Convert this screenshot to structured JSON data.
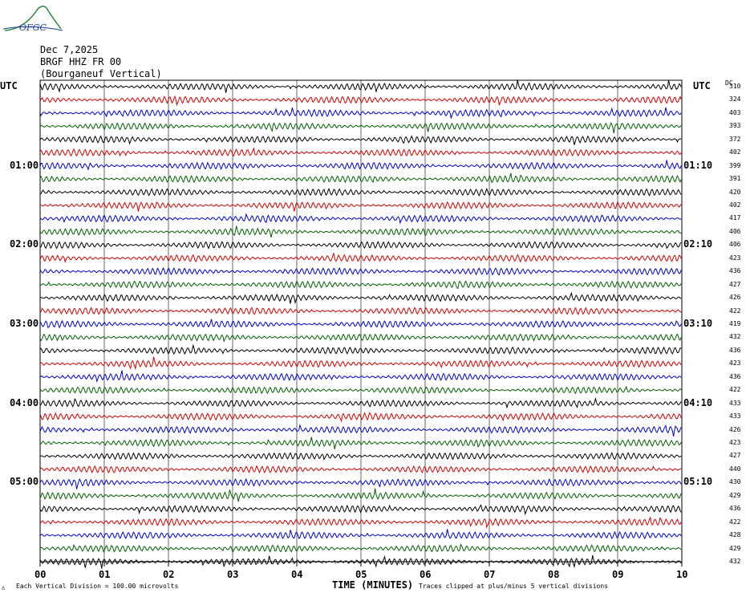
{
  "header": {
    "logo_text": "OFGC",
    "date": "Dec 7,2025",
    "station": "BRGF HHZ FR 00",
    "location": "(Bourganeuf Vertical)"
  },
  "left_axis_label": "UTC",
  "right_axis_label": "UTC",
  "dc_label": "DC",
  "footer": {
    "scale_note": "Each Vertical Division =  100.00 microvolts",
    "clip_note": "Traces clipped at plus/minus 5 vertical divisions"
  },
  "chart_data": {
    "type": "line",
    "title": "",
    "xlabel": "TIME (MINUTES)",
    "xlim": [
      0,
      10
    ],
    "x_ticks": [
      "00",
      "01",
      "02",
      "03",
      "04",
      "05",
      "06",
      "07",
      "08",
      "09",
      "10"
    ],
    "left_time_labels": [
      "01:00",
      "02:00",
      "03:00",
      "04:00",
      "05:00"
    ],
    "right_time_labels": [
      "01:10",
      "02:10",
      "03:10",
      "04:10",
      "05:10"
    ],
    "trace_colors": [
      "#000000",
      "#d00000",
      "#0000d0",
      "#006000"
    ],
    "dc_offsets": [
      310,
      324,
      403,
      393,
      372,
      402,
      399,
      391,
      420,
      402,
      417,
      406,
      406,
      423,
      436,
      427,
      426,
      422,
      419,
      432,
      436,
      423,
      436,
      422,
      433,
      433,
      426,
      423,
      427,
      440,
      430,
      429,
      436,
      422,
      428,
      429,
      432
    ]
  }
}
